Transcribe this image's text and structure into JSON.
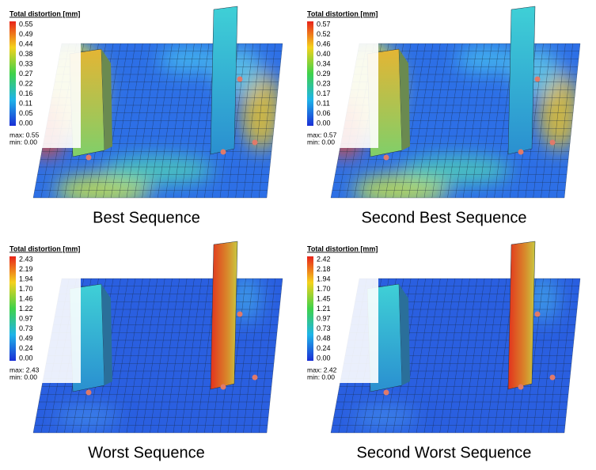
{
  "panels": [
    {
      "legend_title": "Total distortion [mm]",
      "scale_labels": [
        "0.55",
        "0.49",
        "0.44",
        "0.38",
        "0.33",
        "0.27",
        "0.22",
        "0.16",
        "0.11",
        "0.05",
        "0.00"
      ],
      "max_label": "max: 0.55",
      "min_label": "min:  0.00",
      "caption": "Best Sequence"
    },
    {
      "legend_title": "Total distortion [mm]",
      "scale_labels": [
        "0.57",
        "0.52",
        "0.46",
        "0.40",
        "0.34",
        "0.29",
        "0.23",
        "0.17",
        "0.11",
        "0.06",
        "0.00"
      ],
      "max_label": "max: 0.57",
      "min_label": "min:  0.00",
      "caption": "Second Best Sequence"
    },
    {
      "legend_title": "Total distortion [mm]",
      "scale_labels": [
        "2.43",
        "2.19",
        "1.94",
        "1.70",
        "1.46",
        "1.22",
        "0.97",
        "0.73",
        "0.49",
        "0.24",
        "0.00"
      ],
      "max_label": "max: 2.43",
      "min_label": "min:  0.00",
      "caption": "Worst Sequence"
    },
    {
      "legend_title": "Total distortion [mm]",
      "scale_labels": [
        "2.42",
        "2.18",
        "1.94",
        "1.70",
        "1.45",
        "1.21",
        "0.97",
        "0.73",
        "0.48",
        "0.24",
        "0.00"
      ],
      "max_label": "max: 2.42",
      "min_label": "min:  0.00",
      "caption": "Second Worst Sequence"
    }
  ]
}
